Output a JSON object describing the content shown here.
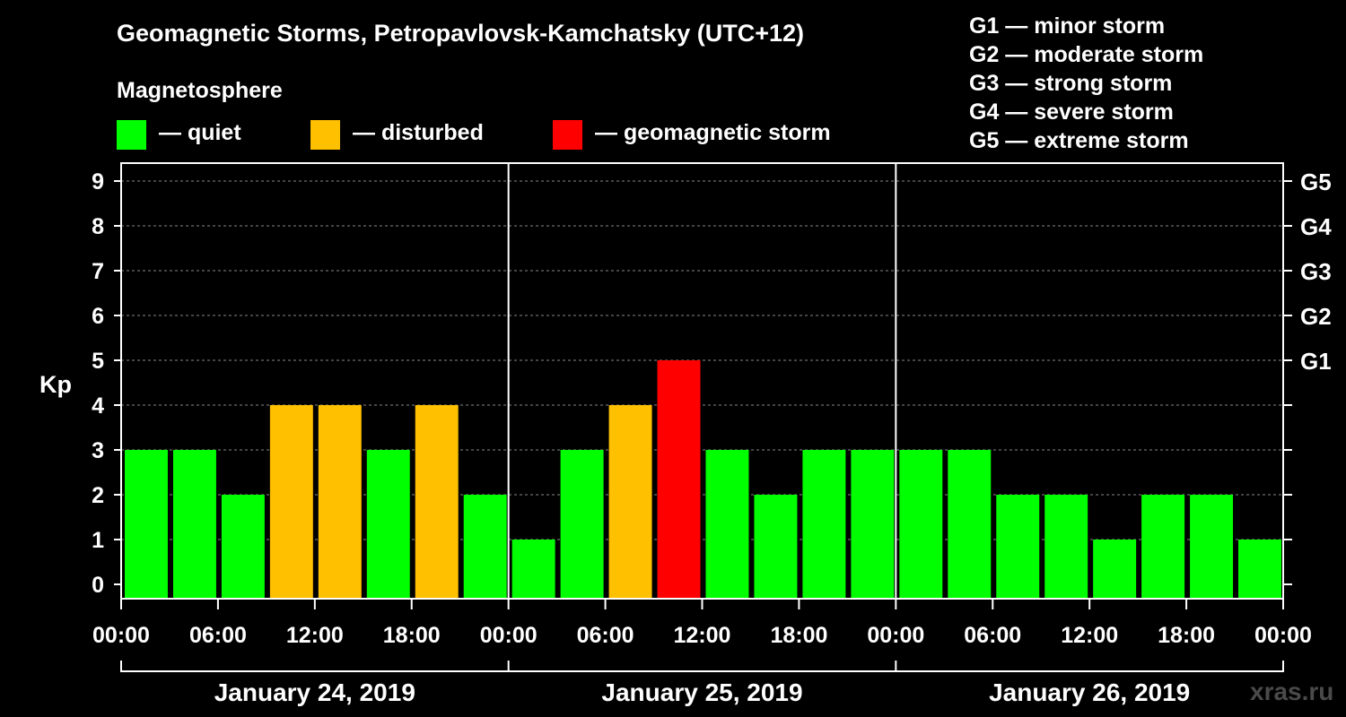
{
  "title": "Geomagnetic Storms, Petropavlovsk-Kamchatsky (UTC+12)",
  "magnetosphere_label": "Magnetosphere",
  "legend": {
    "quiet": {
      "label": "— quiet",
      "color": "#00ff00"
    },
    "disturbed": {
      "label": "— disturbed",
      "color": "#ffc000"
    },
    "storm": {
      "label": "— geomagnetic storm",
      "color": "#ff0000"
    }
  },
  "storm_scale": [
    "G1 — minor storm",
    "G2 — moderate storm",
    "G3 — strong storm",
    "G4 — severe storm",
    "G5 — extreme storm"
  ],
  "watermark": "xras.ru",
  "chart_data": {
    "type": "bar",
    "title": "Geomagnetic Storms, Petropavlovsk-Kamchatsky (UTC+12)",
    "ylabel": "Kp",
    "ylim": [
      0,
      9
    ],
    "y_ticks": [
      "0",
      "1",
      "2",
      "3",
      "4",
      "5",
      "6",
      "7",
      "8",
      "9"
    ],
    "right_ticks": [
      {
        "value": 5,
        "label": "G1"
      },
      {
        "value": 6,
        "label": "G2"
      },
      {
        "value": 7,
        "label": "G3"
      },
      {
        "value": 8,
        "label": "G4"
      },
      {
        "value": 9,
        "label": "G5"
      }
    ],
    "x_tick_labels": [
      "00:00",
      "06:00",
      "12:00",
      "18:00",
      "00:00",
      "06:00",
      "12:00",
      "18:00",
      "00:00",
      "06:00",
      "12:00",
      "18:00",
      "00:00"
    ],
    "days": [
      "January 24, 2019",
      "January 25, 2019",
      "January 26, 2019"
    ],
    "interval_hours": 3,
    "values": [
      3,
      3,
      2,
      4,
      4,
      3,
      4,
      2,
      1,
      3,
      4,
      5,
      3,
      2,
      3,
      3,
      3,
      3,
      2,
      2,
      1,
      2,
      2,
      1
    ],
    "categories": [
      "quiet",
      "quiet",
      "quiet",
      "disturbed",
      "disturbed",
      "quiet",
      "disturbed",
      "quiet",
      "quiet",
      "quiet",
      "disturbed",
      "storm",
      "quiet",
      "quiet",
      "quiet",
      "quiet",
      "quiet",
      "quiet",
      "quiet",
      "quiet",
      "quiet",
      "quiet",
      "quiet",
      "quiet"
    ]
  }
}
